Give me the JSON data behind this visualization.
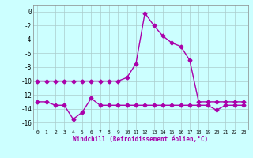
{
  "hours": [
    0,
    1,
    2,
    3,
    4,
    5,
    6,
    7,
    8,
    9,
    10,
    11,
    12,
    13,
    14,
    15,
    16,
    17,
    18,
    19,
    20,
    21,
    22,
    23
  ],
  "line1": [
    -10,
    -10,
    -10,
    -10,
    -10,
    -10,
    -10,
    -10,
    -10,
    -10,
    -9.5,
    -7.5,
    -0.2,
    -2,
    -3.5,
    -4.5,
    -5,
    -7,
    -13,
    -13,
    -13,
    -13,
    -13,
    -13
  ],
  "line2": [
    -13,
    -13,
    -13.5,
    -13.5,
    -15.5,
    -14.5,
    -12.5,
    -13.5,
    -13.5,
    -13.5,
    -13.5,
    -13.5,
    -13.5,
    -13.5,
    -13.5,
    -13.5,
    -13.5,
    -13.5,
    -13.5,
    -13.5,
    -14.2,
    -13.5,
    -13.5,
    -13.5
  ],
  "line_color": "#aa00aa",
  "bg_color": "#ccffff",
  "grid_color": "#aacccc",
  "xlabel": "Windchill (Refroidissement éolien,°C)",
  "ylim": [
    -17,
    1
  ],
  "xlim": [
    -0.5,
    23.5
  ],
  "yticks": [
    0,
    -2,
    -4,
    -6,
    -8,
    -10,
    -12,
    -14,
    -16
  ],
  "xticks": [
    0,
    1,
    2,
    3,
    4,
    5,
    6,
    7,
    8,
    9,
    10,
    11,
    12,
    13,
    14,
    15,
    16,
    17,
    18,
    19,
    20,
    21,
    22,
    23
  ],
  "marker": "D",
  "markersize": 2.5,
  "linewidth": 1.0
}
